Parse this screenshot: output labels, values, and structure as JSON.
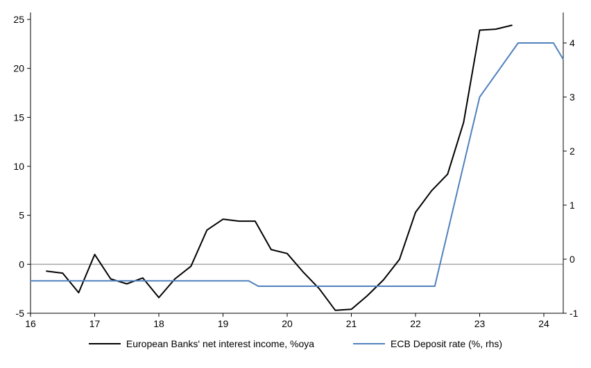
{
  "chart_data": {
    "type": "line",
    "title": "",
    "x_axis": {
      "ticks": [
        16,
        17,
        18,
        19,
        20,
        21,
        22,
        23,
        24
      ],
      "min": 16,
      "max": 24.3
    },
    "left_axis": {
      "min": -5,
      "max": 25,
      "ticks": [
        -5,
        0,
        5,
        10,
        15,
        20,
        25
      ]
    },
    "right_axis": {
      "min": -1,
      "max": 4,
      "ticks": [
        -1,
        0,
        1,
        2,
        3,
        4
      ]
    },
    "zero_line": true,
    "zero_line_color": "#a6a6a6",
    "axis_color": "#000000",
    "series": [
      {
        "name": "European Banks' net interest income, %oya",
        "axis": "left",
        "color": "#000000",
        "width": 2,
        "points": [
          [
            16.25,
            -0.7
          ],
          [
            16.5,
            -0.9
          ],
          [
            16.75,
            -2.9
          ],
          [
            17.0,
            1.0
          ],
          [
            17.25,
            -1.5
          ],
          [
            17.5,
            -2.0
          ],
          [
            17.75,
            -1.4
          ],
          [
            18.0,
            -3.4
          ],
          [
            18.25,
            -1.5
          ],
          [
            18.5,
            -0.2
          ],
          [
            18.75,
            3.5
          ],
          [
            19.0,
            4.6
          ],
          [
            19.25,
            4.4
          ],
          [
            19.5,
            4.4
          ],
          [
            19.75,
            1.5
          ],
          [
            20.0,
            1.1
          ],
          [
            20.25,
            -0.8
          ],
          [
            20.5,
            -2.5
          ],
          [
            20.75,
            -4.7
          ],
          [
            21.0,
            -4.6
          ],
          [
            21.25,
            -3.2
          ],
          [
            21.5,
            -1.6
          ],
          [
            21.75,
            0.5
          ],
          [
            22.0,
            5.3
          ],
          [
            22.25,
            7.5
          ],
          [
            22.5,
            9.2
          ],
          [
            22.75,
            14.5
          ],
          [
            23.0,
            23.9
          ],
          [
            23.25,
            24.0
          ],
          [
            23.5,
            24.4
          ]
        ]
      },
      {
        "name": "ECB Deposit rate (%, rhs)",
        "axis": "right",
        "color": "#4f81bd",
        "width": 2,
        "points": [
          [
            16.0,
            -0.4
          ],
          [
            19.4,
            -0.4
          ],
          [
            19.55,
            -0.5
          ],
          [
            22.3,
            -0.5
          ],
          [
            23.0,
            3.0
          ],
          [
            23.6,
            4.0
          ],
          [
            24.15,
            4.0
          ],
          [
            24.3,
            3.7
          ]
        ]
      }
    ]
  },
  "legend": {
    "items": [
      {
        "label": "European Banks' net interest income, %oya",
        "color": "#000000"
      },
      {
        "label": "ECB Deposit rate (%, rhs)",
        "color": "#4f81bd"
      }
    ]
  }
}
